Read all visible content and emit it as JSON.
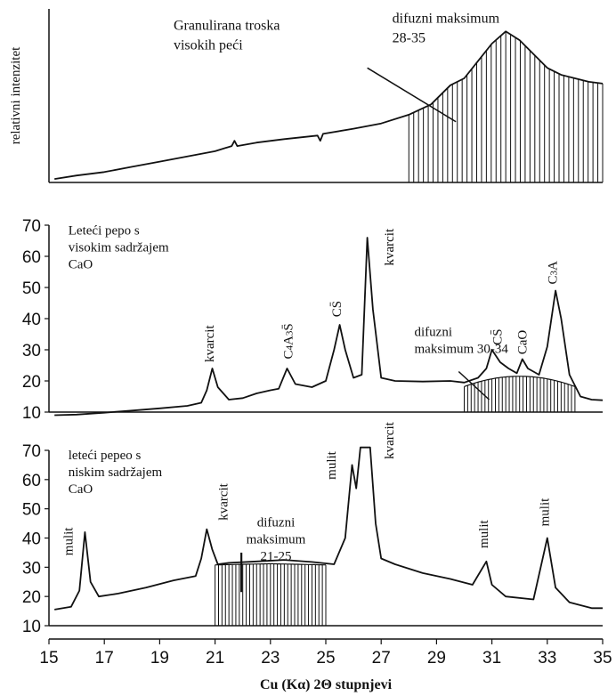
{
  "chart_data": [
    {
      "type": "line",
      "panel": "top",
      "ylabel": "relativni intenzitet",
      "yticks": [],
      "ylim": [
        0,
        100
      ],
      "xlim": [
        15,
        35
      ],
      "trace": [
        [
          15.2,
          2
        ],
        [
          16,
          4
        ],
        [
          17,
          6
        ],
        [
          18,
          9
        ],
        [
          19,
          12
        ],
        [
          20,
          15
        ],
        [
          21,
          18
        ],
        [
          21.6,
          21
        ],
        [
          21.7,
          24
        ],
        [
          21.8,
          21
        ],
        [
          22.5,
          23
        ],
        [
          23.5,
          25
        ],
        [
          24.7,
          27
        ],
        [
          24.8,
          24
        ],
        [
          24.9,
          28
        ],
        [
          26,
          31
        ],
        [
          27,
          34
        ],
        [
          28,
          39
        ],
        [
          28.8,
          45
        ],
        [
          29.5,
          56
        ],
        [
          30,
          60
        ],
        [
          30.6,
          72
        ],
        [
          31,
          80
        ],
        [
          31.5,
          87
        ],
        [
          32,
          82
        ],
        [
          32.5,
          74
        ],
        [
          33,
          66
        ],
        [
          33.5,
          62
        ],
        [
          34,
          60
        ],
        [
          34.5,
          58
        ],
        [
          35,
          57
        ]
      ],
      "shaded_x": [
        28,
        35
      ],
      "annotations": [
        {
          "lines": [
            "Granulirana troska",
            "visokih peći"
          ],
          "x": 19.5,
          "y": 88
        },
        {
          "lines": [
            "difuzni maksimum",
            "28-35"
          ],
          "x": 27.4,
          "y": 92
        }
      ],
      "leader": {
        "from": [
          26.5,
          66
        ],
        "to": [
          29.7,
          35
        ]
      }
    },
    {
      "type": "line",
      "panel": "middle",
      "ylim": [
        10,
        70
      ],
      "yticks": [
        10,
        20,
        30,
        40,
        50,
        60,
        70
      ],
      "xlim": [
        15,
        35
      ],
      "trace": [
        [
          15.2,
          9
        ],
        [
          16,
          9.2
        ],
        [
          17,
          9.8
        ],
        [
          18,
          10.5
        ],
        [
          19,
          11.2
        ],
        [
          20,
          12
        ],
        [
          20.5,
          13
        ],
        [
          20.7,
          17
        ],
        [
          20.9,
          24
        ],
        [
          21.1,
          18
        ],
        [
          21.5,
          14
        ],
        [
          22,
          14.5
        ],
        [
          22.5,
          16
        ],
        [
          23,
          17
        ],
        [
          23.3,
          17.5
        ],
        [
          23.6,
          24
        ],
        [
          23.9,
          19
        ],
        [
          24.5,
          18
        ],
        [
          25,
          20
        ],
        [
          25.3,
          30
        ],
        [
          25.5,
          38
        ],
        [
          25.7,
          30
        ],
        [
          26,
          21
        ],
        [
          26.3,
          22
        ],
        [
          26.5,
          66
        ],
        [
          26.7,
          43
        ],
        [
          27,
          21
        ],
        [
          27.5,
          20
        ],
        [
          28.5,
          19.8
        ],
        [
          29.5,
          20
        ],
        [
          30,
          19.5
        ],
        [
          30.5,
          21
        ],
        [
          30.8,
          24
        ],
        [
          31,
          30
        ],
        [
          31.3,
          26
        ],
        [
          31.6,
          24
        ],
        [
          31.9,
          22.5
        ],
        [
          32.1,
          27
        ],
        [
          32.3,
          24
        ],
        [
          32.7,
          22
        ],
        [
          33,
          31
        ],
        [
          33.3,
          49
        ],
        [
          33.5,
          40
        ],
        [
          33.8,
          22
        ],
        [
          34.2,
          15
        ],
        [
          34.6,
          14
        ],
        [
          35,
          13.8
        ]
      ],
      "shaded_x": [
        30,
        34
      ],
      "annotations": [
        {
          "lines": [
            "Leteći pepo s",
            "visokim sadržajem",
            "CaO"
          ],
          "x": 15.7,
          "y": 67
        }
      ],
      "peak_labels": [
        {
          "text": "kvarcit",
          "x": 20.95,
          "y": 26
        },
        {
          "text": "C4A3S̄",
          "x": 23.8,
          "y": 27
        },
        {
          "text": "CS̄",
          "x": 25.55,
          "y": 40.5
        },
        {
          "text": "kvarcit",
          "x": 27.45,
          "y": 57
        },
        {
          "text": "CS̄",
          "x": 31.35,
          "y": 31.5
        },
        {
          "text": "CaO",
          "x": 32.25,
          "y": 28.5
        },
        {
          "text": "C3A",
          "x": 33.35,
          "y": 51
        }
      ],
      "callout": {
        "lines": [
          "difuzni",
          "maksimum 30-34"
        ],
        "x": 28.2,
        "y": 34.5
      },
      "leader": {
        "from": [
          29.8,
          23
        ],
        "to": [
          30.9,
          14
        ]
      }
    },
    {
      "type": "line",
      "panel": "bottom",
      "ylim": [
        10,
        70
      ],
      "yticks": [
        10,
        20,
        30,
        40,
        50,
        60,
        70
      ],
      "xlim": [
        15,
        35
      ],
      "xticks": [
        15,
        17,
        19,
        21,
        23,
        25,
        27,
        29,
        31,
        33,
        35
      ],
      "xlabel": "Cu (Kα) 2Θ stupnjevi",
      "trace": [
        [
          15.2,
          15.5
        ],
        [
          15.8,
          16.5
        ],
        [
          16.1,
          22
        ],
        [
          16.3,
          42
        ],
        [
          16.5,
          25
        ],
        [
          16.8,
          20
        ],
        [
          17.5,
          21
        ],
        [
          18.5,
          23
        ],
        [
          19.5,
          25.5
        ],
        [
          20.3,
          27
        ],
        [
          20.5,
          33
        ],
        [
          20.7,
          43
        ],
        [
          20.9,
          36
        ],
        [
          21.1,
          31
        ],
        [
          21.5,
          31.5
        ],
        [
          22.5,
          32
        ],
        [
          23.5,
          32.5
        ],
        [
          24.5,
          31.8
        ],
        [
          25.3,
          31
        ],
        [
          25.7,
          40
        ],
        [
          25.95,
          65
        ],
        [
          26.1,
          57
        ],
        [
          26.25,
          71
        ],
        [
          26.45,
          71
        ],
        [
          26.6,
          71
        ],
        [
          26.8,
          45
        ],
        [
          27,
          33
        ],
        [
          27.5,
          31
        ],
        [
          28.5,
          28
        ],
        [
          29.5,
          26
        ],
        [
          30.3,
          24
        ],
        [
          30.8,
          32
        ],
        [
          31,
          24
        ],
        [
          31.5,
          20
        ],
        [
          32.5,
          19
        ],
        [
          33,
          40
        ],
        [
          33.3,
          23
        ],
        [
          33.8,
          18
        ],
        [
          34.2,
          17
        ],
        [
          34.6,
          16
        ],
        [
          35,
          16
        ]
      ],
      "shaded_x": [
        21,
        25
      ],
      "annotations": [
        {
          "lines": [
            "leteći pepeo s",
            "niskim sadržajem",
            "CaO"
          ],
          "x": 15.7,
          "y": 67
        }
      ],
      "peak_labels": [
        {
          "text": "mulit",
          "x": 15.85,
          "y": 34
        },
        {
          "text": "kvarcit",
          "x": 21.45,
          "y": 46
        },
        {
          "text": "mulit",
          "x": 25.35,
          "y": 60
        },
        {
          "text": "kvarcit",
          "x": 27.45,
          "y": 67
        },
        {
          "text": "mulit",
          "x": 30.85,
          "y": 36.5
        },
        {
          "text": "mulit",
          "x": 33.05,
          "y": 44
        }
      ],
      "callout": {
        "lines": [
          "difuzni",
          "maksimum",
          "21-25"
        ],
        "x": 23.2,
        "y": 44
      }
    }
  ]
}
